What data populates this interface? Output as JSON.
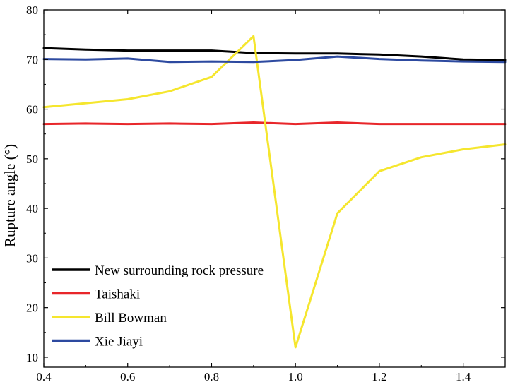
{
  "chart_data": {
    "type": "line",
    "xlabel": "",
    "ylabel": "Rupture angle (°)",
    "xlim": [
      0.4,
      1.5
    ],
    "ylim": [
      8,
      80
    ],
    "xticks": [
      0.4,
      0.6,
      0.8,
      1.0,
      1.2,
      1.4
    ],
    "xtick_labels": [
      "0.4",
      "0.6",
      "0.8",
      "1.0",
      "1.2",
      "1.4"
    ],
    "yticks": [
      10,
      20,
      30,
      40,
      50,
      60,
      70,
      80
    ],
    "ytick_labels": [
      "10",
      "20",
      "30",
      "40",
      "50",
      "60",
      "70",
      "80"
    ],
    "grid": false,
    "legend_position": "bottom-left",
    "series": [
      {
        "name": "New surrounding rock pressure",
        "color": "#000000",
        "x": [
          0.4,
          0.5,
          0.6,
          0.7,
          0.8,
          0.9,
          1.0,
          1.1,
          1.2,
          1.3,
          1.4,
          1.5
        ],
        "y": [
          72.3,
          72.0,
          71.8,
          71.8,
          71.8,
          71.3,
          71.2,
          71.2,
          71.0,
          70.6,
          70.0,
          69.9
        ]
      },
      {
        "name": "Taishaki",
        "color": "#e8262a",
        "x": [
          0.4,
          0.5,
          0.6,
          0.7,
          0.8,
          0.9,
          1.0,
          1.1,
          1.2,
          1.3,
          1.4,
          1.5
        ],
        "y": [
          57.0,
          57.1,
          57.0,
          57.1,
          57.0,
          57.3,
          57.0,
          57.3,
          57.0,
          57.0,
          57.0,
          57.0
        ]
      },
      {
        "name": "Bill Bowman",
        "color": "#f5e62e",
        "x": [
          0.4,
          0.5,
          0.6,
          0.7,
          0.8,
          0.9,
          1.0,
          1.1,
          1.2,
          1.3,
          1.4,
          1.5
        ],
        "y": [
          60.4,
          61.2,
          62.0,
          63.6,
          66.5,
          74.7,
          12.0,
          39.0,
          47.5,
          50.3,
          51.9,
          52.9
        ]
      },
      {
        "name": "Xie Jiayi",
        "color": "#2d4aa0",
        "x": [
          0.4,
          0.5,
          0.6,
          0.7,
          0.8,
          0.9,
          1.0,
          1.1,
          1.2,
          1.3,
          1.4,
          1.5
        ],
        "y": [
          70.1,
          70.0,
          70.2,
          69.5,
          69.6,
          69.5,
          69.9,
          70.6,
          70.1,
          69.8,
          69.6,
          69.5
        ]
      }
    ]
  }
}
